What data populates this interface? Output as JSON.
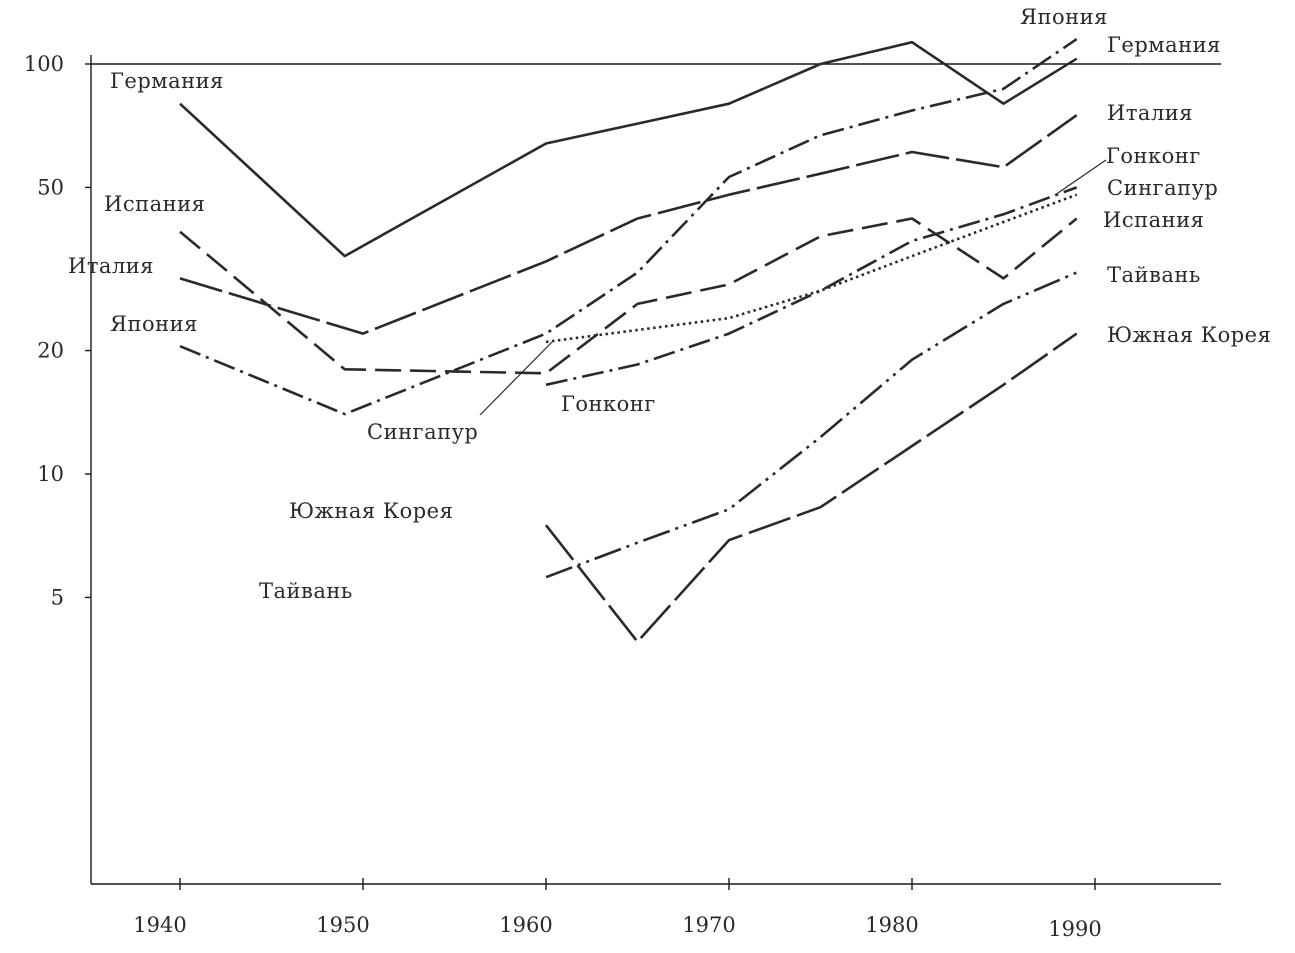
{
  "chart_data": {
    "type": "line",
    "title": "",
    "xlabel": "",
    "ylabel": "",
    "y_scale": "log",
    "xlim": [
      1935,
      1997
    ],
    "ylim": [
      1,
      130
    ],
    "xticks": [
      1940,
      1950,
      1960,
      1970,
      1980,
      1990
    ],
    "xtick_labels": [
      "1940",
      "1950",
      "1960",
      "1970",
      "1980",
      "1990"
    ],
    "yticks": [
      5,
      10,
      20,
      50,
      100
    ],
    "ytick_labels": [
      "5",
      "10",
      "20",
      "50",
      "100"
    ],
    "reference_line_y": 100,
    "grid": false,
    "legend": "inline labels at line ends",
    "series": [
      {
        "name": "Германия",
        "style": "solid",
        "x": [
          1940,
          1949,
          1960,
          1970,
          1975,
          1980,
          1985,
          1989
        ],
        "y": [
          80,
          34,
          64,
          80,
          100,
          113,
          80,
          103
        ]
      },
      {
        "name": "Италия",
        "style": "longdash",
        "x": [
          1940,
          1950,
          1960,
          1965,
          1970,
          1975,
          1980,
          1985,
          1989
        ],
        "y": [
          30,
          22,
          33,
          42,
          48,
          54,
          61,
          56,
          75
        ]
      },
      {
        "name": "Испания",
        "style": "dash",
        "x": [
          1940,
          1949,
          1960,
          1965,
          1970,
          1975,
          1980,
          1985,
          1989
        ],
        "y": [
          39,
          18,
          17.6,
          26,
          29,
          38,
          42,
          30,
          42
        ]
      },
      {
        "name": "Япония",
        "style": "dashdot",
        "x": [
          1940,
          1949,
          1960,
          1965,
          1970,
          1975,
          1980,
          1985,
          1989
        ],
        "y": [
          20.5,
          14,
          22,
          31,
          53,
          67,
          77,
          87,
          115
        ]
      },
      {
        "name": "Сингапур",
        "style": "dotted",
        "x": [
          1960,
          1970,
          1975,
          1980,
          1989
        ],
        "y": [
          21,
          24,
          28,
          34,
          48
        ]
      },
      {
        "name": "Гонконг",
        "style": "dashdot",
        "x": [
          1960,
          1965,
          1970,
          1975,
          1980,
          1985,
          1989
        ],
        "y": [
          16.5,
          18.5,
          22,
          28,
          37,
          43,
          50
        ]
      },
      {
        "name": "Южная Корея",
        "style": "dashdotdot",
        "x": [
          1960,
          1965,
          1970,
          1975,
          1980,
          1985,
          1989
        ],
        "y": [
          5.6,
          6.8,
          8.2,
          12.3,
          19,
          26,
          31
        ]
      },
      {
        "name": "Тайвань",
        "style": "longdash",
        "x": [
          1960,
          1965,
          1970,
          1975,
          1980,
          1985,
          1989
        ],
        "y": [
          7.5,
          3.9,
          6.9,
          8.3,
          11.7,
          16.5,
          22
        ]
      }
    ],
    "labels": [
      {
        "text": "Германия",
        "series": "Германия",
        "end": "left"
      },
      {
        "text": "Испания",
        "series": "Испания",
        "end": "left"
      },
      {
        "text": "Италия",
        "series": "Италия",
        "end": "left"
      },
      {
        "text": "Япония",
        "series": "Япония",
        "end": "left"
      },
      {
        "text": "Сингапур",
        "series": "Сингапур",
        "end": "left"
      },
      {
        "text": "Гонконг",
        "series": "Гонконг",
        "end": "left"
      },
      {
        "text": "Южная Корея",
        "series": "Южная Корея",
        "end": "left"
      },
      {
        "text": "Тайвань",
        "series": "Тайвань",
        "end": "left"
      },
      {
        "text": "Япония",
        "series": "Япония",
        "end": "right"
      },
      {
        "text": "Германия",
        "series": "Германия",
        "end": "right"
      },
      {
        "text": "Италия",
        "series": "Италия",
        "end": "right"
      },
      {
        "text": "Гонконг",
        "series": "Гонконг",
        "end": "right"
      },
      {
        "text": "Сингапур",
        "series": "Сингапур",
        "end": "right"
      },
      {
        "text": "Испания",
        "series": "Испания",
        "end": "right"
      },
      {
        "text": "Тайвань",
        "series": "Тайвань",
        "end": "right"
      },
      {
        "text": "Южная Корея",
        "series": "Южная Корея",
        "end": "right"
      }
    ]
  }
}
